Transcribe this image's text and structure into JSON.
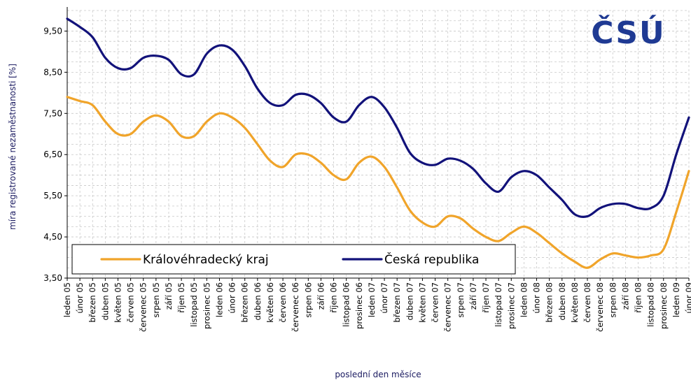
{
  "chart_data": {
    "type": "line",
    "title": "",
    "xlabel": "poslední den měsíce",
    "ylabel": "míra registrované nezaměstnanosti [%]",
    "ylim": [
      3.5,
      10.0
    ],
    "yticks": [
      "3,50",
      "4,50",
      "5,50",
      "6,50",
      "7,50",
      "8,50",
      "9,50"
    ],
    "grid": true,
    "legend_position": "bottom-left",
    "logo": "ČSÚ",
    "categories": [
      "leden 05",
      "únor 05",
      "březen 05",
      "duben 05",
      "květen 05",
      "červen 05",
      "červenec 05",
      "srpen 05",
      "září 05",
      "říjen 05",
      "listopad 05",
      "prosinec 05",
      "leden 06",
      "únor 06",
      "březen 06",
      "duben 06",
      "květen 06",
      "červen 06",
      "červenec 06",
      "srpen 06",
      "září 06",
      "říjen 06",
      "listopad 06",
      "prosinec 06",
      "leden 07",
      "únor 07",
      "březen 07",
      "duben 07",
      "květen 07",
      "červen 07",
      "červenec 07",
      "srpen 07",
      "září 07",
      "říjen 07",
      "listopad 07",
      "prosinec 07",
      "leden 08",
      "únor 08",
      "březen 08",
      "duben 08",
      "květen 08",
      "červen 08",
      "červenec 08",
      "srpen 08",
      "září 08",
      "říjen 08",
      "listopad 08",
      "prosinec 08",
      "leden 09",
      "únor 09"
    ],
    "series": [
      {
        "name": "Královéhradecký kraj",
        "color": "#f0a42a",
        "values": [
          7.9,
          7.8,
          7.7,
          7.3,
          7.0,
          7.0,
          7.3,
          7.45,
          7.3,
          6.95,
          6.95,
          7.3,
          7.5,
          7.4,
          7.15,
          6.75,
          6.35,
          6.2,
          6.5,
          6.5,
          6.3,
          6.0,
          5.9,
          6.3,
          6.45,
          6.2,
          5.7,
          5.15,
          4.85,
          4.75,
          5.0,
          4.95,
          4.7,
          4.5,
          4.4,
          4.6,
          4.75,
          4.6,
          4.35,
          4.1,
          3.9,
          3.75,
          3.95,
          4.1,
          4.05,
          4.0,
          4.05,
          4.2,
          5.1,
          6.1
        ]
      },
      {
        "name": "Česká republika",
        "color": "#12127a",
        "values": [
          9.8,
          9.6,
          9.35,
          8.85,
          8.6,
          8.6,
          8.85,
          8.9,
          8.8,
          8.45,
          8.45,
          8.95,
          9.15,
          9.05,
          8.65,
          8.1,
          7.75,
          7.7,
          7.95,
          7.95,
          7.75,
          7.4,
          7.3,
          7.7,
          7.9,
          7.65,
          7.15,
          6.55,
          6.3,
          6.25,
          6.4,
          6.35,
          6.15,
          5.8,
          5.6,
          5.95,
          6.1,
          6.0,
          5.7,
          5.4,
          5.05,
          5.0,
          5.2,
          5.3,
          5.3,
          5.2,
          5.2,
          5.5,
          6.5,
          7.4
        ]
      }
    ]
  }
}
